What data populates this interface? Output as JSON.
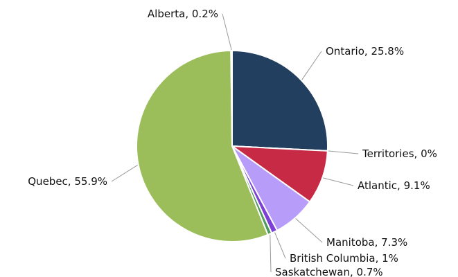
{
  "chart_data": {
    "type": "pie",
    "categories": [
      "Ontario",
      "Territories",
      "Atlantic",
      "Manitoba",
      "British Columbia",
      "Saskatchewan",
      "Quebec",
      "Alberta"
    ],
    "values": [
      25.8,
      0,
      9.1,
      7.3,
      1,
      0.7,
      55.9,
      0.2
    ],
    "value_labels": [
      "25.8%",
      "0%",
      "9.1%",
      "7.3%",
      "1%",
      "0.7%",
      "55.9%",
      "0.2%"
    ],
    "colors": [
      "#223f5f",
      "#e07b39",
      "#c62a45",
      "#b79cf9",
      "#7d3fd6",
      "#4f9a5e",
      "#9bbd5a",
      "#e0a030"
    ]
  }
}
